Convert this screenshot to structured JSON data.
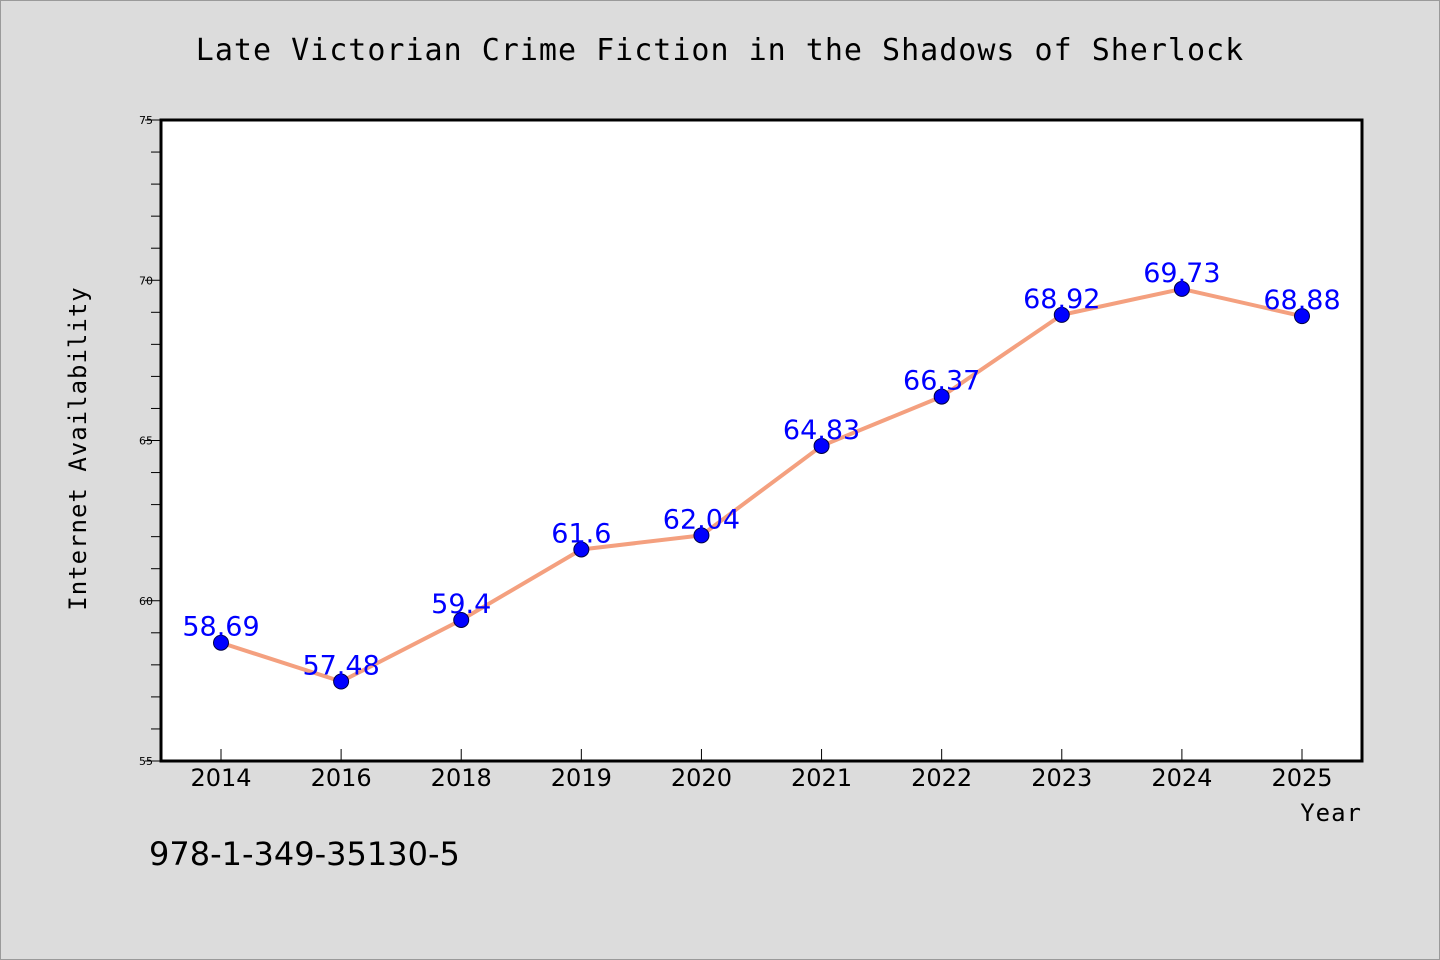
{
  "chart_data": {
    "type": "line",
    "title": "Late Victorian Crime Fiction in the Shadows of Sherlock",
    "xlabel": "Year",
    "ylabel": "Internet Availability",
    "categories": [
      "2014",
      "2016",
      "2018",
      "2019",
      "2020",
      "2021",
      "2022",
      "2023",
      "2024",
      "2025"
    ],
    "series": [
      {
        "values": [
          58.69,
          57.48,
          59.4,
          61.6,
          62.04,
          64.83,
          66.37,
          68.92,
          69.73,
          68.88
        ],
        "labels": [
          "58.69",
          "57.48",
          "59.4",
          "61.6",
          "62.04",
          "64.83",
          "66.37",
          "68.92",
          "69.73",
          "68.88"
        ]
      }
    ],
    "ylim": [
      55,
      75
    ],
    "yticks": [
      "55",
      "60",
      "65",
      "70",
      "75"
    ],
    "grid": false,
    "line_color": "#f4a07f",
    "marker_color": "#0000ff",
    "label_color": "#0000ff"
  },
  "footer": {
    "isbn": "978-1-349-35130-5"
  }
}
